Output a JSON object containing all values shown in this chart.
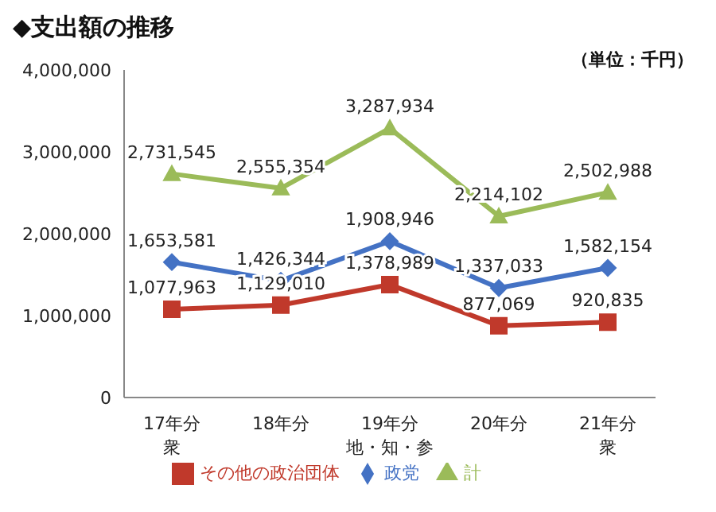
{
  "chart_data": {
    "type": "line",
    "title": "◆支出額の推移",
    "annotations": [
      "（単位：千円）"
    ],
    "categories": [
      "17年分衆",
      "18年分",
      "19年分地・知・参",
      "20年分",
      "21年分衆"
    ],
    "series": [
      {
        "name": "政党",
        "color": "#4472c4",
        "marker": "diamond",
        "values": [
          1653581,
          1426344,
          1908946,
          1337033,
          1582154
        ],
        "value_labels": [
          "1,653,581",
          "1,426,344",
          "1,908,946",
          "1,337,033",
          "1,582,154"
        ]
      },
      {
        "name": "その他の政治団体",
        "color": "#c0392b",
        "marker": "square",
        "values": [
          1077963,
          1129010,
          1378989,
          877069,
          920835
        ],
        "value_labels": [
          "1,077,963",
          "1,129,010",
          "1,378,989",
          "877,069",
          "920,835"
        ]
      },
      {
        "name": "計",
        "color": "#9bbb59",
        "marker": "triangle",
        "values": [
          2731545,
          2555354,
          3287934,
          2214102,
          2502988
        ],
        "value_labels": [
          "2,731,545",
          "2,555,354",
          "3,287,934",
          "2,214,102",
          "2,502,988"
        ]
      }
    ],
    "ylim": [
      0,
      4000000
    ],
    "yticks": [
      {
        "value": 0,
        "label": "0"
      },
      {
        "value": 1000000,
        "label": "1,000,000"
      },
      {
        "value": 2000000,
        "label": "2,000,000"
      },
      {
        "value": 3000000,
        "label": "3,000,000"
      },
      {
        "value": 4000000,
        "label": "4,000,000"
      }
    ],
    "legend": "bottom",
    "line_style": "solid"
  }
}
